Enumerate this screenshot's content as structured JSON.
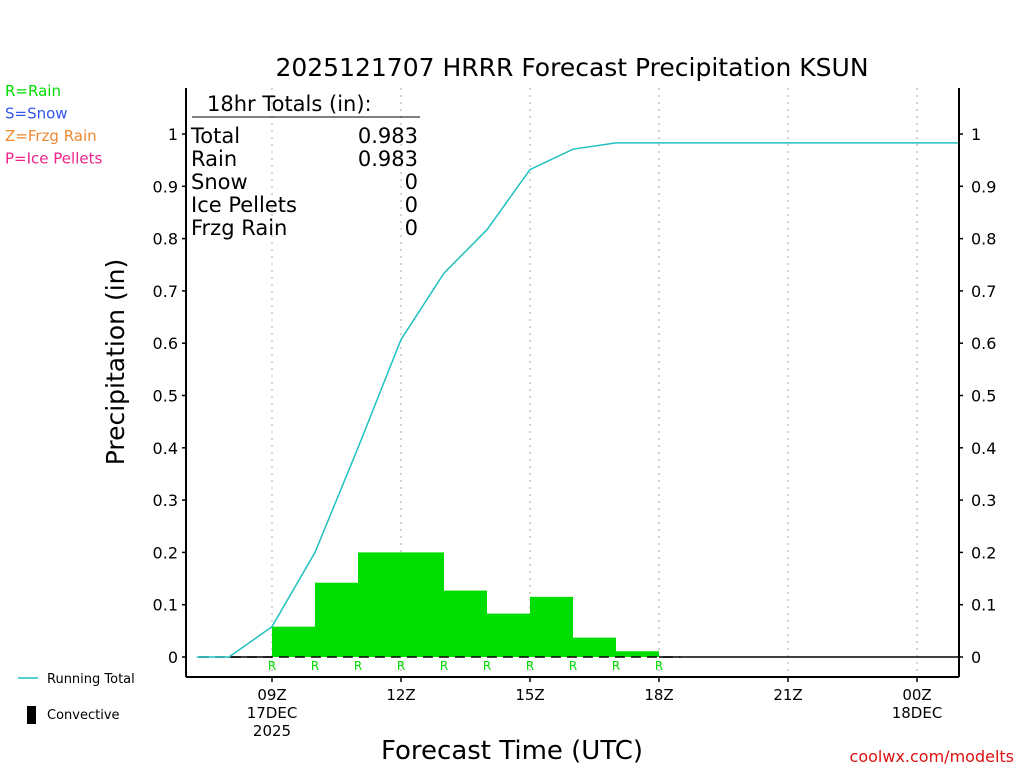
{
  "chart_data": {
    "type": "bar",
    "title": "2025121707 HRRR Forecast Precipitation KSUN",
    "xlabel": "Forecast Time (UTC)",
    "ylabel": "Precipitation (in)",
    "ylim": [
      0,
      1.05
    ],
    "yticks": [
      0,
      0.1,
      0.2,
      0.3,
      0.4,
      0.5,
      0.6,
      0.7,
      0.8,
      0.9,
      1
    ],
    "ytick_labels": [
      "0",
      "0.1",
      "0.2",
      "0.3",
      "0.4",
      "0.5",
      "0.6",
      "0.7",
      "0.8",
      "0.9",
      "1"
    ],
    "x_range_hours": [
      7,
      25
    ],
    "xticks": [
      {
        "hour": 9,
        "lines": [
          "09Z",
          "17DEC",
          "2025"
        ]
      },
      {
        "hour": 12,
        "lines": [
          "12Z"
        ]
      },
      {
        "hour": 15,
        "lines": [
          "15Z"
        ]
      },
      {
        "hour": 18,
        "lines": [
          "18Z"
        ]
      },
      {
        "hour": 21,
        "lines": [
          "21Z"
        ]
      },
      {
        "hour": 24,
        "lines": [
          "00Z",
          "18DEC"
        ]
      }
    ],
    "grid": "vertical dotted",
    "hourly_bars": [
      {
        "start": 8,
        "end": 9,
        "value": 0
      },
      {
        "start": 9,
        "end": 10,
        "value": 0.058
      },
      {
        "start": 10,
        "end": 11,
        "value": 0.142
      },
      {
        "start": 11,
        "end": 12,
        "value": 0.2
      },
      {
        "start": 12,
        "end": 13,
        "value": 0.2
      },
      {
        "start": 13,
        "end": 14,
        "value": 0.127
      },
      {
        "start": 14,
        "end": 15,
        "value": 0.083
      },
      {
        "start": 15,
        "end": 16,
        "value": 0.115
      },
      {
        "start": 16,
        "end": 17,
        "value": 0.037
      },
      {
        "start": 17,
        "end": 18,
        "value": 0.011
      },
      {
        "start": 18,
        "end": 25,
        "value": 0
      }
    ],
    "precip_type_markers": [
      {
        "hour": 9,
        "label": "R"
      },
      {
        "hour": 10,
        "label": "R"
      },
      {
        "hour": 11,
        "label": "R"
      },
      {
        "hour": 12,
        "label": "R"
      },
      {
        "hour": 13,
        "label": "R"
      },
      {
        "hour": 14,
        "label": "R"
      },
      {
        "hour": 15,
        "label": "R"
      },
      {
        "hour": 16,
        "label": "R"
      },
      {
        "hour": 17,
        "label": "R"
      },
      {
        "hour": 18,
        "label": "R"
      }
    ],
    "running_total": {
      "name": "Running Total",
      "color": "#20c0c0",
      "x": [
        7.25,
        8,
        9,
        10,
        11,
        12,
        13,
        14,
        15,
        16,
        17,
        18,
        25
      ],
      "y": [
        0,
        0,
        0.058,
        0.2,
        0.4,
        0.607,
        0.734,
        0.817,
        0.932,
        0.971,
        0.983,
        0.983,
        0.983
      ]
    },
    "totals_box": {
      "header": "18hr Totals (in):",
      "rows": [
        {
          "label": "Total",
          "value": "0.983"
        },
        {
          "label": "Rain",
          "value": "0.983"
        },
        {
          "label": "Snow",
          "value": "0"
        },
        {
          "label": "Ice Pellets",
          "value": "0"
        },
        {
          "label": "Frzg Rain",
          "value": "0"
        }
      ]
    },
    "type_legend": [
      {
        "text": "R=Rain",
        "color": "#00dd00"
      },
      {
        "text": "S=Snow",
        "color": "#3355ee"
      },
      {
        "text": "Z=Frzg Rain",
        "color": "#ee8833"
      },
      {
        "text": "P=Ice Pellets",
        "color": "#ee2288"
      }
    ],
    "bottom_legend": [
      {
        "text": "Running Total",
        "kind": "line",
        "color": "#20c0c0"
      },
      {
        "text": "Convective",
        "kind": "bar",
        "color": "#000000"
      }
    ],
    "bar_color": "#00dd00",
    "marker_color": "#00dd00",
    "credit": "coolwx.com/modelts",
    "credit_color": "#dd1111"
  }
}
